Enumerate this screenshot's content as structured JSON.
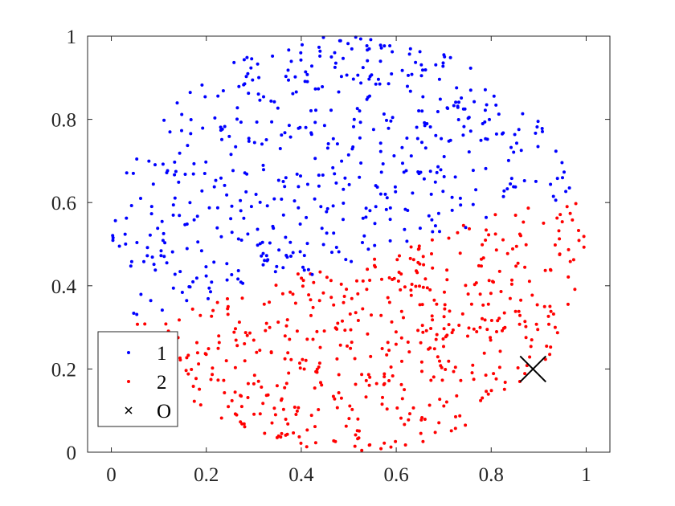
{
  "chart_data": {
    "type": "scatter",
    "title": "",
    "xlabel": "",
    "ylabel": "",
    "xlim": [
      -0.05,
      1.05
    ],
    "ylim": [
      0,
      1
    ],
    "grid": false,
    "legend_position": "bottom-left",
    "x_ticks": [
      "0",
      "0.2",
      "0.4",
      "0.6",
      "0.8",
      "1"
    ],
    "y_ticks": [
      "0",
      "0.2",
      "0.4",
      "0.6",
      "0.8",
      "1"
    ],
    "x_tick_values": [
      0,
      0.2,
      0.4,
      0.6,
      0.8,
      1
    ],
    "y_tick_values": [
      0,
      0.2,
      0.4,
      0.6,
      0.8,
      1
    ],
    "distribution": {
      "region": "disk",
      "center": [
        0.5,
        0.5
      ],
      "radius": 0.5,
      "boundary_line": {
        "from": [
          0.0,
          0.28
        ],
        "to": [
          1.0,
          0.64
        ]
      },
      "points_per_class": 520
    },
    "series": [
      {
        "name": "1",
        "color": "#0000ff",
        "marker": "dot",
        "region": "above-boundary"
      },
      {
        "name": "2",
        "color": "#ff0000",
        "marker": "dot",
        "region": "below-boundary"
      },
      {
        "name": "O",
        "color": "#000000",
        "marker": "x",
        "points": [
          [
            0.888,
            0.2
          ]
        ]
      }
    ]
  }
}
